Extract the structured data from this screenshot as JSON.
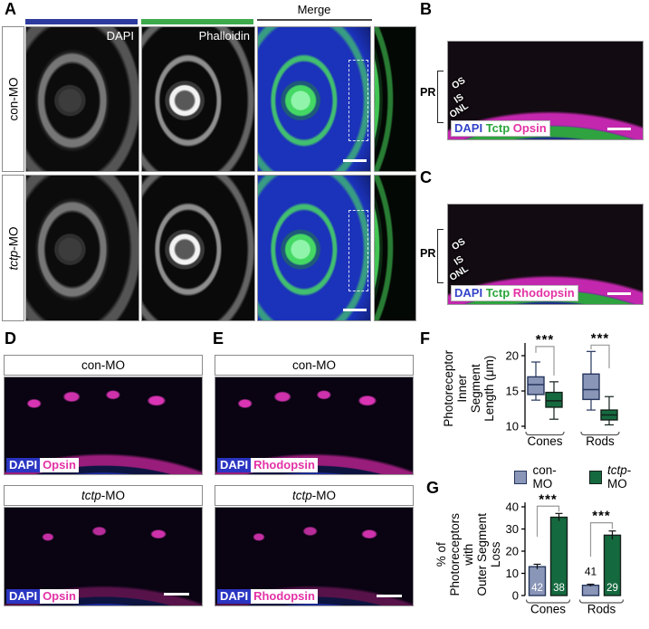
{
  "colors": {
    "con_fill": "#8a96b8",
    "con_border": "#25355c",
    "tctp_fill": "#15693f",
    "tctp_border": "#13201a",
    "dapi_bar": "#2d3a9e",
    "phal_bar": "#3faa4b",
    "dapi_text": "#3343c9",
    "tctp_text": "#2ba53b",
    "opsin_text": "#e332a5",
    "dapi_chip": "#2a35c2",
    "sig_line": "#999999"
  },
  "panel_a": {
    "label": "A",
    "col1_header": "DAPI",
    "col2_header": "Phalloidin",
    "merge_header": "Merge",
    "row1_label": "con-MO",
    "row2_label_italic": "tctp",
    "row2_label_suffix": "-MO"
  },
  "panel_b": {
    "label": "B",
    "pr": "PR",
    "os": "OS",
    "is": "IS",
    "onl": "ONL",
    "cap_dapi": "DAPI",
    "cap_tctp": "Tctp",
    "cap_marker": "Opsin"
  },
  "panel_c": {
    "label": "C",
    "pr": "PR",
    "os": "OS",
    "is": "IS",
    "onl": "ONL",
    "cap_dapi": "DAPI",
    "cap_tctp": "Tctp",
    "cap_marker": "Rhodopsin"
  },
  "panel_d": {
    "label": "D",
    "header1": "con-MO",
    "header2_italic": "tctp",
    "header2_suffix": "-MO",
    "cap_dapi": "DAPI",
    "cap_marker": "Opsin"
  },
  "panel_e": {
    "label": "E",
    "header1": "con-MO",
    "header2_italic": "tctp",
    "header2_suffix": "-MO",
    "cap_dapi": "DAPI",
    "cap_marker": "Rhodopsin"
  },
  "panel_f": {
    "label": "F"
  },
  "panel_g": {
    "label": "G"
  },
  "legend": {
    "con_label": "con-MO",
    "tctp_italic": "tctp",
    "tctp_suffix": "-MO"
  },
  "chart_data": [
    {
      "id": "F",
      "type": "boxplot",
      "ylabel": "Photoreceptor Inner\nSegment Length (μm)",
      "categories": [
        "Cones",
        "Rods"
      ],
      "ylim": [
        9.6,
        21.8
      ],
      "yticks": [
        10,
        15,
        20
      ],
      "series": [
        {
          "name": "con-MO",
          "boxes": [
            {
              "category": "Cones",
              "min": 13.7,
              "q1": 14.5,
              "median": 15.9,
              "q3": 17.0,
              "max": 19.1
            },
            {
              "category": "Rods",
              "min": 12.3,
              "q1": 13.8,
              "median": 15.2,
              "q3": 17.4,
              "max": 20.6
            }
          ]
        },
        {
          "name": "tctp-MO",
          "boxes": [
            {
              "category": "Cones",
              "min": 11.0,
              "q1": 12.7,
              "median": 13.6,
              "q3": 14.8,
              "max": 16.3
            },
            {
              "category": "Rods",
              "min": 10.2,
              "q1": 10.9,
              "median": 11.6,
              "q3": 12.3,
              "max": 14.2
            }
          ]
        }
      ],
      "sig": [
        {
          "category": "Cones",
          "label": "***",
          "bar_y": 21.3,
          "left_drop": 20.4,
          "right_drop": 17.2
        },
        {
          "category": "Rods",
          "label": "***",
          "bar_y": 21.5,
          "left_drop": 20.9,
          "right_drop": 18.2
        }
      ]
    },
    {
      "id": "G",
      "type": "bar",
      "ylabel": "% of Photoreceptors with\nOuter Segment Loss",
      "categories": [
        "Cones",
        "Rods"
      ],
      "ylim": [
        0,
        42
      ],
      "yticks": [
        0,
        10,
        20,
        30,
        40
      ],
      "series": [
        {
          "name": "con-MO",
          "values": [
            13,
            4.6
          ],
          "errors": [
            1.1,
            0.5
          ],
          "n_labels": [
            "42",
            "41"
          ],
          "label_inside": [
            true,
            false
          ]
        },
        {
          "name": "tctp-MO",
          "values": [
            35.3,
            27.2
          ],
          "errors": [
            1.7,
            1.9
          ],
          "n_labels": [
            "38",
            "29"
          ],
          "label_inside": [
            true,
            true
          ]
        }
      ],
      "sig": [
        {
          "category": "Cones",
          "label": "***",
          "bar_y": 40.3,
          "left_drop": 26.5,
          "right_drop": 37.8
        },
        {
          "category": "Rods",
          "label": "***",
          "bar_y": 32.8,
          "left_drop": 17.5,
          "right_drop": 30.0
        }
      ]
    }
  ]
}
